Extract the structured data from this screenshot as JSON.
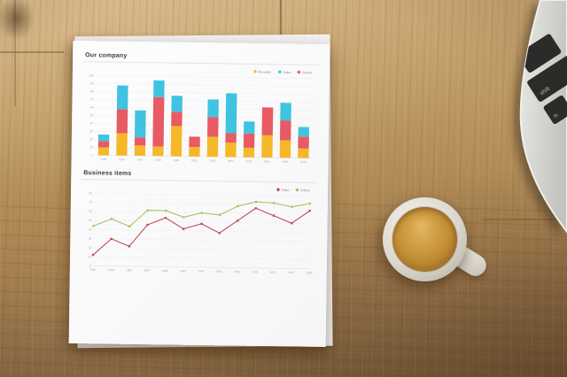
{
  "paper": {
    "sections": [
      {
        "title": "Our company"
      },
      {
        "title": "Business items"
      }
    ]
  },
  "laptop": {
    "keys": [
      "shift",
      "fn"
    ]
  },
  "palette": {
    "wood": "#b38d58",
    "paper": "#fafafb",
    "cup": "#e8e5de",
    "coffee_crema": "#c08c32",
    "laptop_body": "#d6d6d2",
    "laptop_key": "#2b2b2a",
    "bar_yellow": "#f6b829",
    "bar_red": "#e85b64",
    "bar_cyan": "#3fc3e1",
    "line_red": "#bf4a60",
    "line_green": "#a3c764"
  },
  "chart_data": [
    {
      "type": "bar",
      "stacked": true,
      "title": "Our company",
      "categories": [
        "1995",
        "1996",
        "1997",
        "1998",
        "1999",
        "2000",
        "2001",
        "2002",
        "2003",
        "2004",
        "2005",
        "2006"
      ],
      "series": [
        {
          "name": "Receipts",
          "color": "#f6b829",
          "values": [
            10,
            28,
            13,
            12,
            38,
            12,
            25,
            18,
            12,
            28,
            22,
            12
          ]
        },
        {
          "name": "Orders",
          "color": "#e85b64",
          "values": [
            8,
            30,
            10,
            62,
            18,
            13,
            25,
            12,
            18,
            35,
            25,
            15
          ]
        },
        {
          "name": "Sales",
          "color": "#3fc3e1",
          "values": [
            8,
            30,
            34,
            21,
            20,
            0,
            22,
            50,
            15,
            0,
            22,
            12
          ]
        }
      ],
      "legend_order": [
        0,
        2,
        1
      ],
      "xlabel": "",
      "ylabel": "",
      "ylim": [
        0,
        100
      ],
      "ytick_step": 10,
      "grid": true,
      "legend_position": "top-right"
    },
    {
      "type": "line",
      "title": "Business items",
      "x": [
        "1994",
        "1995",
        "1996",
        "1997",
        "1998",
        "1999",
        "2000",
        "2001",
        "2002",
        "2003",
        "2004",
        "2005",
        "2006"
      ],
      "series": [
        {
          "name": "Sales",
          "color": "#bf4a60",
          "values": [
            12,
            30,
            22,
            46,
            54,
            42,
            48,
            38,
            52,
            66,
            58,
            50,
            64
          ]
        },
        {
          "name": "Orders",
          "color": "#a3c764",
          "values": [
            44,
            52,
            44,
            62,
            62,
            55,
            60,
            58,
            68,
            73,
            72,
            68,
            72
          ]
        }
      ],
      "xlabel": "",
      "ylabel": "",
      "ylim": [
        0,
        80
      ],
      "ytick_step": 10,
      "grid": true,
      "legend_position": "top-right"
    }
  ]
}
